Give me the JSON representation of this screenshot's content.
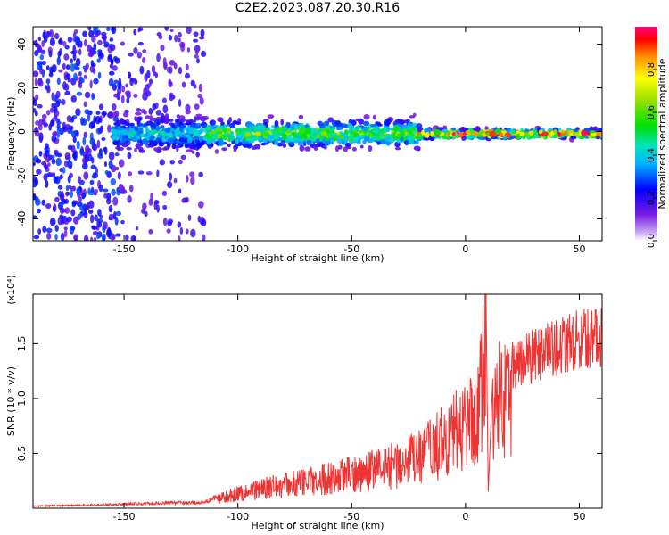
{
  "title": "C2E2.2023.087.20.30.R16",
  "colors": {
    "snr_line": "#ee3333",
    "scatter_base": "#7a1de0",
    "axis": "#000000"
  },
  "chart_data": [
    {
      "type": "heatmap",
      "xlabel": "Height of straight line (km)",
      "ylabel": "Frequency (Hz)",
      "xlim": [
        -190,
        60
      ],
      "ylim": [
        -50,
        48
      ],
      "x_ticks": [
        -150,
        -100,
        -50,
        0,
        50
      ],
      "x_tick_labels": [
        "-150",
        "-100",
        "-50",
        "0",
        "50"
      ],
      "y_ticks": [
        -40,
        -20,
        0,
        20,
        40
      ],
      "y_tick_labels": [
        "-40",
        "-20",
        "0",
        "20",
        "40"
      ],
      "colorbar": {
        "label": "Normalized spectral amplitude",
        "range": [
          0,
          1
        ],
        "ticks": [
          0.0,
          0.2,
          0.4,
          0.6,
          0.8
        ],
        "tick_labels": [
          "0.0",
          "0.2",
          "0.4",
          "0.6",
          "0.8"
        ],
        "colormap": "rainbow"
      },
      "ridge": {
        "frequency_center": -1,
        "segments": [
          {
            "x_from": -155,
            "x_to": -115,
            "amplitude": 0.35
          },
          {
            "x_from": -115,
            "x_to": -20,
            "amplitude": 0.55
          },
          {
            "x_from": -20,
            "x_to": 60,
            "amplitude": 0.9
          }
        ]
      }
    },
    {
      "type": "line",
      "xlabel": "Height of straight line (km)",
      "ylabel": "SNR (10 * v/v)",
      "y_multiplier_label": "(x10⁴)",
      "xlim": [
        -190,
        60
      ],
      "ylim": [
        0,
        1.95
      ],
      "x_ticks": [
        -150,
        -100,
        -50,
        0,
        50
      ],
      "x_tick_labels": [
        "-150",
        "-100",
        "-50",
        "0",
        "50"
      ],
      "y_ticks": [
        0.5,
        1.0,
        1.5
      ],
      "y_tick_labels": [
        "0.5",
        "1.0",
        "1.5"
      ],
      "series_envelope": {
        "x": [
          -190,
          -160,
          -130,
          -115,
          -105,
          -90,
          -70,
          -50,
          -30,
          -20,
          -10,
          0,
          5,
          8,
          9,
          10,
          12,
          20,
          30,
          40,
          50,
          60
        ],
        "y": [
          0.02,
          0.03,
          0.05,
          0.05,
          0.14,
          0.22,
          0.3,
          0.38,
          0.5,
          0.58,
          0.75,
          0.95,
          1.05,
          1.6,
          1.95,
          0.15,
          1.2,
          1.35,
          1.42,
          1.5,
          1.58,
          1.6
        ]
      }
    }
  ]
}
